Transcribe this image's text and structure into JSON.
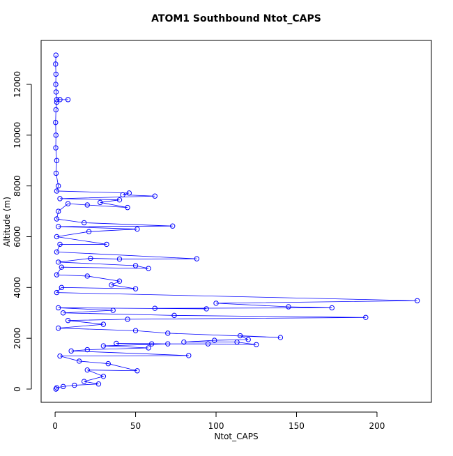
{
  "chart_data": {
    "type": "line",
    "title": "ATOM1 Southbound Ntot_CAPS",
    "x_label": "Ntot_CAPS",
    "y_label": "Altitude (m)",
    "color": "#0000ff",
    "markers": true,
    "x": [
      0.5,
      0.3,
      0.5,
      0.4,
      0.6,
      1,
      8,
      3,
      1,
      0.5,
      0.3,
      0.5,
      0.4,
      1,
      0.6,
      2,
      1,
      46,
      42,
      62,
      3,
      40,
      28,
      45,
      20,
      8,
      2,
      1,
      18,
      73,
      2,
      51,
      21,
      1,
      32,
      3,
      1,
      88,
      40,
      22,
      2,
      50,
      58,
      4,
      1,
      20,
      40,
      35,
      50,
      4,
      1,
      225,
      100,
      145,
      172,
      62,
      94,
      2,
      36,
      5,
      74,
      193,
      45,
      8,
      30,
      2,
      50,
      70,
      140,
      115,
      120,
      99,
      80,
      113,
      125,
      95,
      60,
      38,
      70,
      30,
      58,
      20,
      10,
      83,
      3,
      15,
      33,
      51,
      20,
      30,
      18,
      27,
      12,
      5,
      1,
      0.5
    ],
    "values": [
      13150,
      12800,
      12400,
      12000,
      11700,
      11400,
      11400,
      11400,
      11300,
      11000,
      10500,
      10000,
      9500,
      9000,
      8500,
      8000,
      7800,
      7720,
      7650,
      7600,
      7500,
      7450,
      7350,
      7150,
      7250,
      7300,
      7000,
      6700,
      6550,
      6420,
      6400,
      6300,
      6200,
      6000,
      5700,
      5700,
      5400,
      5130,
      5120,
      5150,
      5000,
      4860,
      4750,
      4800,
      4500,
      4450,
      4250,
      4100,
      3950,
      4000,
      3800,
      3480,
      3380,
      3240,
      3200,
      3180,
      3160,
      3200,
      3100,
      3000,
      2900,
      2820,
      2750,
      2700,
      2550,
      2400,
      2300,
      2200,
      2030,
      2100,
      1950,
      1920,
      1850,
      1850,
      1750,
      1780,
      1780,
      1800,
      1780,
      1700,
      1620,
      1550,
      1500,
      1320,
      1300,
      1100,
      1000,
      720,
      750,
      500,
      300,
      200,
      150,
      100,
      50,
      0
    ],
    "xlim": [
      -8.7,
      233.8
    ],
    "ylim": [
      -522,
      13730
    ],
    "xticks": [
      0,
      50,
      100,
      150,
      200
    ],
    "yticks": [
      0,
      2000,
      4000,
      6000,
      8000,
      10000,
      12000
    ]
  }
}
